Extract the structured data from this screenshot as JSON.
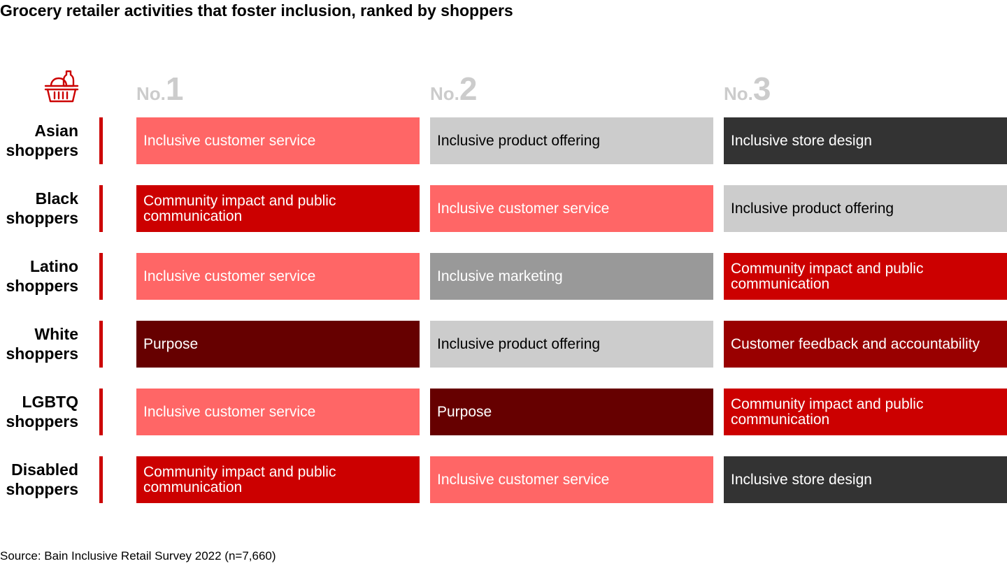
{
  "title": "Grocery retailer activities that foster inclusion, ranked by shoppers",
  "source": "Source: Bain Inclusive Retail Survey 2022 (n=7,660)",
  "icon": "shopping-basket-icon",
  "colors": {
    "accent": "#cc0000",
    "rank_label": "#cccccc",
    "categories": {
      "Inclusive customer service": "#ff6666",
      "Inclusive product offering": "#cccccc",
      "Inclusive store design": "#333333",
      "Community impact and public communication": "#cc0000",
      "Inclusive marketing": "#999999",
      "Purpose": "#660000",
      "Customer feedback and accountability": "#990000"
    },
    "dark_text_categories": [
      "Inclusive product offering"
    ]
  },
  "chart_data": {
    "type": "table",
    "title": "Grocery retailer activities that foster inclusion, ranked by shoppers",
    "columns": [
      {
        "prefix": "No.",
        "number": "1"
      },
      {
        "prefix": "No.",
        "number": "2"
      },
      {
        "prefix": "No.",
        "number": "3"
      }
    ],
    "rows": [
      {
        "group": "Asian shoppers",
        "ranks": [
          "Inclusive customer service",
          "Inclusive product offering",
          "Inclusive store design"
        ]
      },
      {
        "group": "Black shoppers",
        "ranks": [
          "Community impact and public communication",
          "Inclusive customer service",
          "Inclusive product offering"
        ]
      },
      {
        "group": "Latino shoppers",
        "ranks": [
          "Inclusive customer service",
          "Inclusive marketing",
          "Community impact and public communication"
        ]
      },
      {
        "group": "White shoppers",
        "ranks": [
          "Purpose",
          "Inclusive product offering",
          "Customer feedback and accountability"
        ]
      },
      {
        "group": "LGBTQ shoppers",
        "ranks": [
          "Inclusive customer service",
          "Purpose",
          "Community impact and public communication"
        ]
      },
      {
        "group": "Disabled shoppers",
        "ranks": [
          "Community impact and public communication",
          "Inclusive customer service",
          "Inclusive store design"
        ]
      }
    ]
  }
}
